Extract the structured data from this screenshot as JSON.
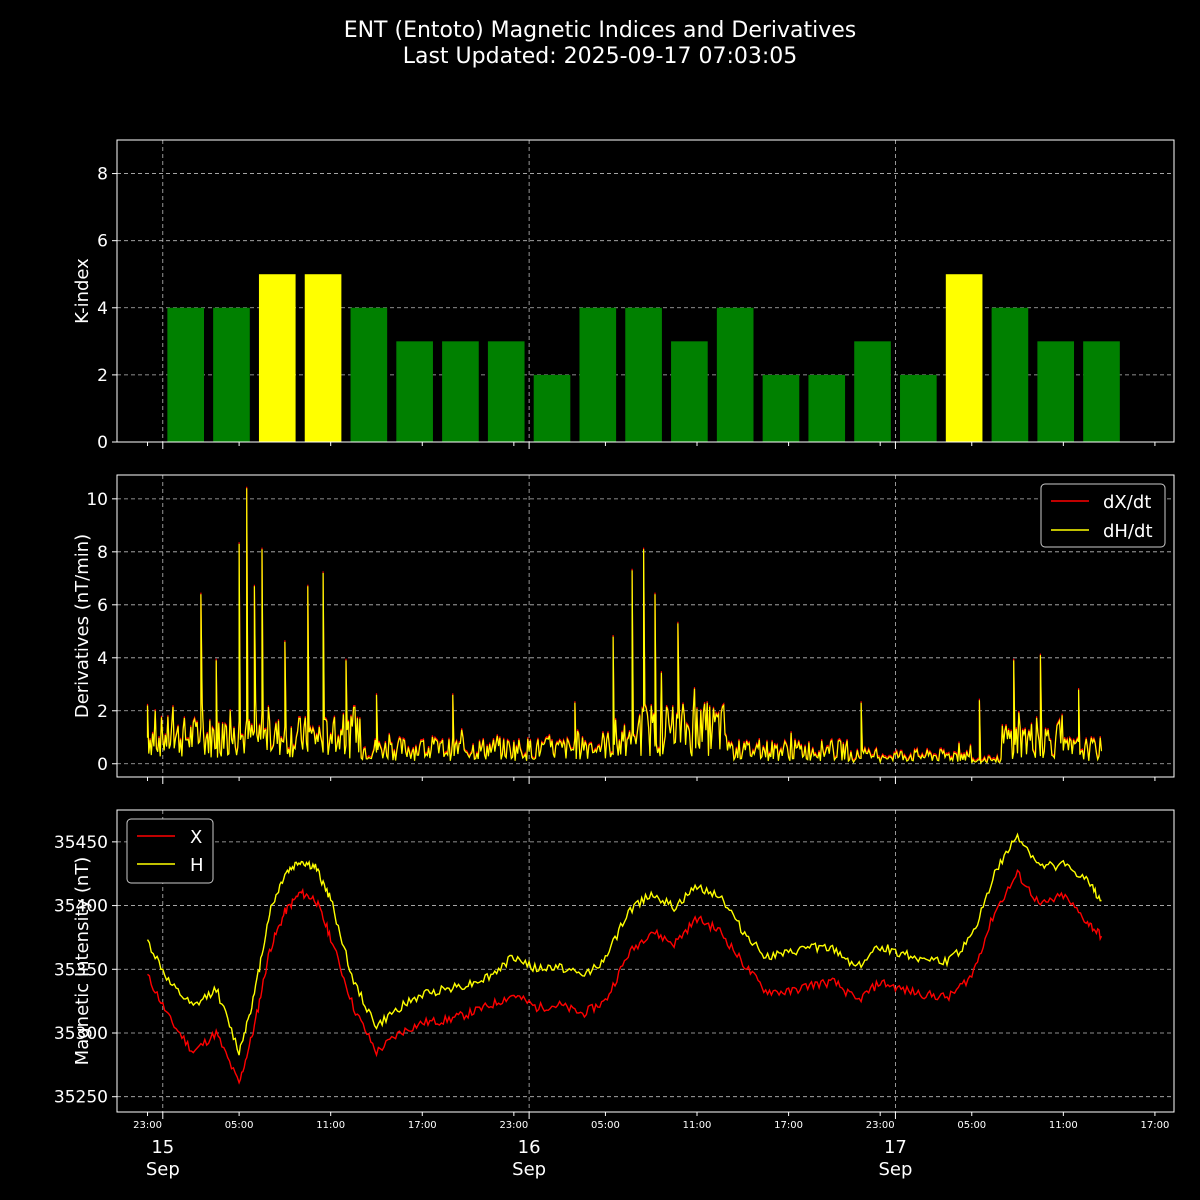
{
  "header": {
    "title": "ENT (Entoto) Magnetic Indices and Derivatives",
    "subtitle": "Last Updated: 2025-09-17 07:03:05"
  },
  "colors": {
    "background": "#000000",
    "k_green": "#008000",
    "k_yellow": "#ffff00",
    "x_series": "#ff0000",
    "h_series": "#ffff00",
    "grid": "#bbbbbb"
  },
  "time_axis": {
    "start": "2025-09-14 21:00",
    "end": "2025-09-17 18:15",
    "minor_ticks": [
      "23:00",
      "05:00",
      "11:00",
      "17:00",
      "23:00",
      "05:00",
      "11:00",
      "17:00",
      "23:00",
      "05:00",
      "11:00",
      "17:00"
    ],
    "major_ticks": [
      {
        "day": "15",
        "month": "Sep"
      },
      {
        "day": "16",
        "month": "Sep"
      },
      {
        "day": "17",
        "month": "Sep"
      }
    ]
  },
  "chart_data": [
    {
      "type": "bar",
      "panel": "k-index",
      "ylabel": "K-index",
      "ylim": [
        0,
        9
      ],
      "yticks": [
        "0",
        "2",
        "4",
        "6",
        "8"
      ],
      "grid": true,
      "bar_starts": [
        "2025-09-15 00:00",
        "2025-09-15 03:00",
        "2025-09-15 06:00",
        "2025-09-15 09:00",
        "2025-09-15 12:00",
        "2025-09-15 15:00",
        "2025-09-15 18:00",
        "2025-09-15 21:00",
        "2025-09-16 00:00",
        "2025-09-16 03:00",
        "2025-09-16 06:00",
        "2025-09-16 09:00",
        "2025-09-16 12:00",
        "2025-09-16 15:00",
        "2025-09-16 18:00",
        "2025-09-16 21:00",
        "2025-09-17 00:00",
        "2025-09-17 03:00",
        "2025-09-17 06:00",
        "2025-09-17 09:00",
        "2025-09-17 12:00"
      ],
      "values": [
        4,
        4,
        5,
        5,
        4,
        3,
        3,
        3,
        2,
        4,
        4,
        3,
        4,
        2,
        2,
        3,
        2,
        5,
        4,
        3,
        3
      ]
    },
    {
      "type": "line",
      "panel": "derivatives",
      "ylabel": "Derivatives (nT/min)",
      "ylim": [
        -0.5,
        10.9
      ],
      "yticks": [
        "0",
        "2",
        "4",
        "6",
        "8",
        "10"
      ],
      "legend": "top-right",
      "grid": true,
      "series": [
        {
          "name": "dX/dt",
          "color": "#ff0000"
        },
        {
          "name": "dH/dt",
          "color": "#ffff00"
        }
      ],
      "peaks": {
        "x": [
          "2025-09-14 23:00",
          "2025-09-15 02:30",
          "2025-09-15 03:30",
          "2025-09-15 05:00",
          "2025-09-15 05:30",
          "2025-09-15 06:00",
          "2025-09-15 06:30",
          "2025-09-15 08:00",
          "2025-09-15 09:30",
          "2025-09-15 10:30",
          "2025-09-15 12:00",
          "2025-09-15 14:00",
          "2025-09-15 19:00",
          "2025-09-16 03:00",
          "2025-09-16 05:30",
          "2025-09-16 06:45",
          "2025-09-16 07:30",
          "2025-09-16 08:15",
          "2025-09-16 09:45",
          "2025-09-16 11:00",
          "2025-09-16 21:45",
          "2025-09-17 05:30",
          "2025-09-17 07:45",
          "2025-09-17 09:30",
          "2025-09-17 12:00"
        ],
        "values": [
          2.2,
          6.4,
          3.9,
          8.3,
          10.4,
          6.7,
          8.1,
          4.6,
          6.7,
          7.2,
          3.9,
          2.6,
          2.6,
          2.3,
          4.8,
          7.3,
          8.1,
          6.4,
          5.3,
          1.8,
          2.3,
          2.4,
          3.9,
          4.1,
          2.8
        ]
      }
    },
    {
      "type": "line",
      "panel": "magnetic-intensity",
      "ylabel": "Magnetic Intensity (nT)",
      "ylim": [
        35238,
        35475
      ],
      "yticks": [
        "35250",
        "35300",
        "35350",
        "35400",
        "35450"
      ],
      "legend": "top-left",
      "grid": true,
      "x": [
        "2025-09-14 23:00",
        "2025-09-15 00:30",
        "2025-09-15 02:00",
        "2025-09-15 03:30",
        "2025-09-15 05:00",
        "2025-09-15 06:00",
        "2025-09-15 07:00",
        "2025-09-15 08:00",
        "2025-09-15 09:00",
        "2025-09-15 10:00",
        "2025-09-15 11:00",
        "2025-09-15 12:30",
        "2025-09-15 14:00",
        "2025-09-15 15:30",
        "2025-09-15 17:00",
        "2025-09-15 18:30",
        "2025-09-15 20:00",
        "2025-09-15 21:30",
        "2025-09-15 23:00",
        "2025-09-16 00:30",
        "2025-09-16 02:00",
        "2025-09-16 03:30",
        "2025-09-16 05:00",
        "2025-09-16 06:30",
        "2025-09-16 08:00",
        "2025-09-16 09:30",
        "2025-09-16 11:00",
        "2025-09-16 12:30",
        "2025-09-16 14:00",
        "2025-09-16 15:30",
        "2025-09-16 17:00",
        "2025-09-16 18:30",
        "2025-09-16 20:00",
        "2025-09-16 21:30",
        "2025-09-16 23:00",
        "2025-09-17 00:30",
        "2025-09-17 02:00",
        "2025-09-17 03:30",
        "2025-09-17 05:00",
        "2025-09-17 06:30",
        "2025-09-17 08:00",
        "2025-09-17 09:30",
        "2025-09-17 11:00",
        "2025-09-17 12:30",
        "2025-09-17 13:30"
      ],
      "series": [
        {
          "name": "X",
          "color": "#ff0000",
          "values": [
            35345,
            35310,
            35285,
            35300,
            35260,
            35305,
            35365,
            35395,
            35410,
            35405,
            35375,
            35320,
            35285,
            35300,
            35308,
            35310,
            35315,
            35322,
            35330,
            35320,
            35322,
            35315,
            35325,
            35362,
            35380,
            35370,
            35390,
            35380,
            35355,
            35333,
            35332,
            35338,
            35340,
            35325,
            35340,
            35334,
            35330,
            35328,
            35345,
            35395,
            35425,
            35400,
            35408,
            35388,
            35376
          ]
        },
        {
          "name": "H",
          "color": "#ffff00",
          "values": [
            35372,
            35338,
            35320,
            35335,
            35285,
            35330,
            35395,
            35425,
            35435,
            35430,
            35405,
            35340,
            35305,
            35320,
            35330,
            35335,
            35338,
            35345,
            35360,
            35350,
            35352,
            35345,
            35358,
            35395,
            35410,
            35398,
            35415,
            35408,
            35380,
            35360,
            35362,
            35368,
            35365,
            35352,
            35368,
            35362,
            35358,
            35356,
            35375,
            35425,
            35455,
            35430,
            35432,
            35420,
            35404
          ]
        }
      ]
    }
  ]
}
